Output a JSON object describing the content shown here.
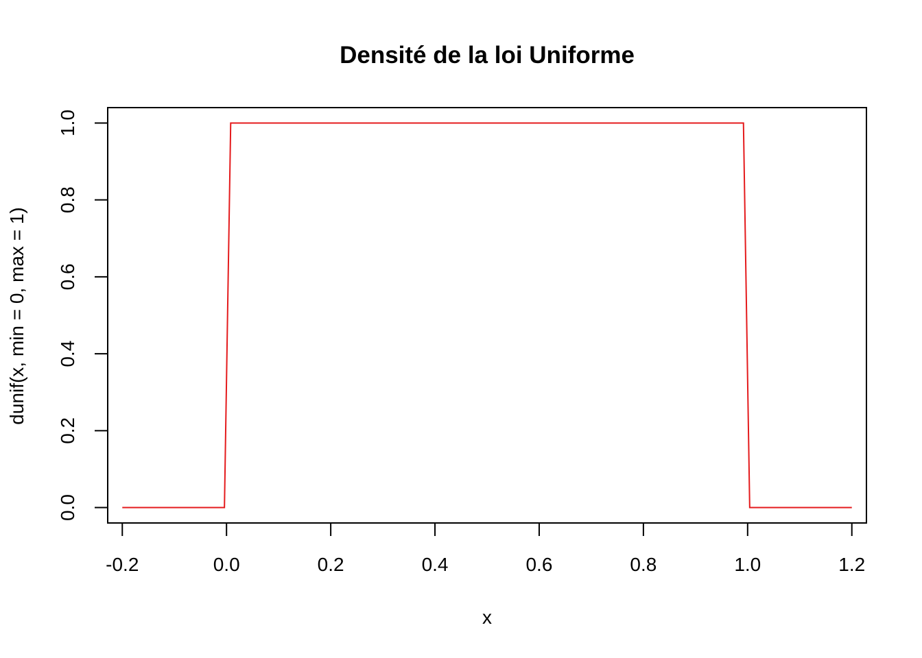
{
  "chart_data": {
    "type": "line",
    "title": "Densité de la loi Uniforme",
    "xlabel": "x",
    "ylabel": "dunif(x, min = 0, max = 1)",
    "xlim": [
      -0.228,
      1.228
    ],
    "ylim": [
      -0.04,
      1.04
    ],
    "x_ticks": [
      -0.2,
      0.0,
      0.2,
      0.4,
      0.6,
      0.8,
      1.0,
      1.2
    ],
    "x_tick_labels": [
      "-0.2",
      "0.0",
      "0.2",
      "0.4",
      "0.6",
      "0.8",
      "1.0",
      "1.2"
    ],
    "y_ticks": [
      0.0,
      0.2,
      0.4,
      0.6,
      0.8,
      1.0
    ],
    "y_tick_labels": [
      "0.0",
      "0.2",
      "0.4",
      "0.6",
      "0.8",
      "1.0"
    ],
    "grid": false,
    "series": [
      {
        "color": "#e41a1c",
        "x": [
          -0.2,
          -0.004,
          0.008,
          0.992,
          1.004,
          1.2
        ],
        "y": [
          0,
          0,
          1,
          1,
          0,
          0
        ]
      }
    ]
  }
}
